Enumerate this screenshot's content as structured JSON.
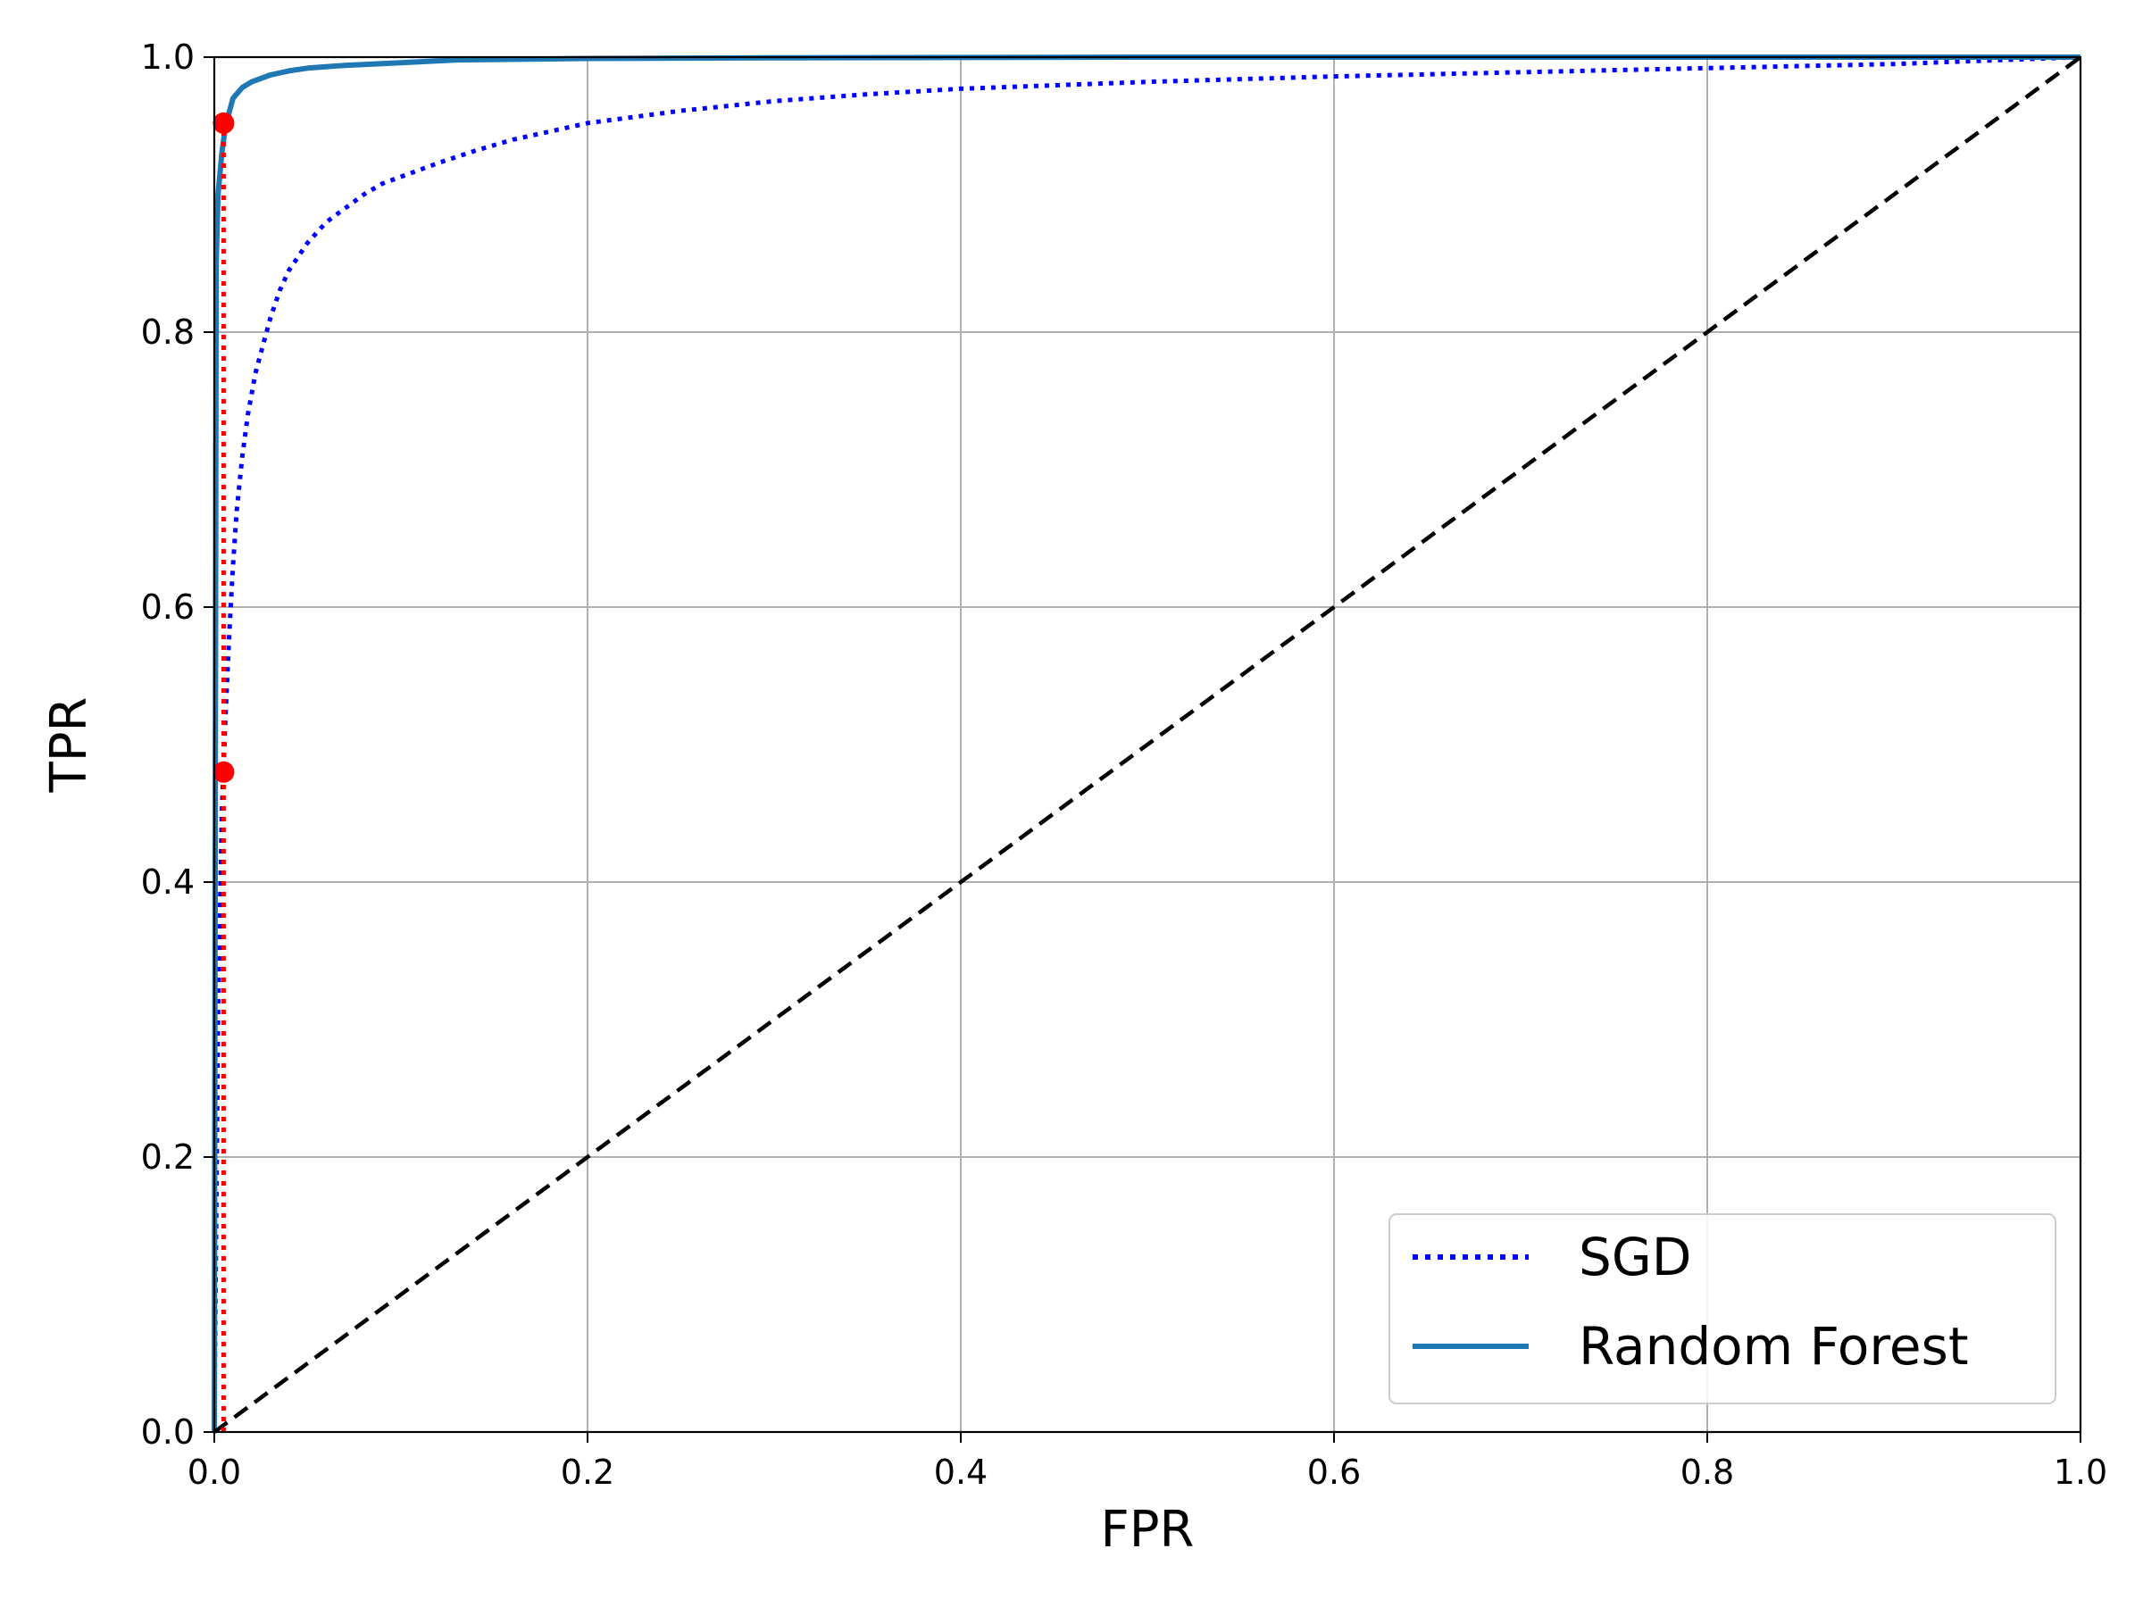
{
  "chart_data": {
    "type": "line",
    "title": "",
    "xlabel": "FPR",
    "ylabel": "TPR",
    "xlim": [
      0.0,
      1.0
    ],
    "ylim": [
      0.0,
      1.0
    ],
    "grid": true,
    "x_ticks": [
      "0.0",
      "0.2",
      "0.4",
      "0.6",
      "0.8",
      "1.0"
    ],
    "y_ticks": [
      "0.0",
      "0.2",
      "0.4",
      "0.6",
      "0.8",
      "1.0"
    ],
    "legend": {
      "placement": "bottom-right",
      "entries": [
        {
          "name": "SGD",
          "style": "dotted",
          "color": "#0000ff"
        },
        {
          "name": "Random Forest",
          "style": "solid",
          "color": "#1f77b4"
        }
      ]
    },
    "series": [
      {
        "name": "SGD",
        "style": "dotted",
        "color": "#0000ff",
        "x": [
          0.0,
          0.002,
          0.004,
          0.006,
          0.008,
          0.01,
          0.012,
          0.015,
          0.018,
          0.022,
          0.026,
          0.03,
          0.035,
          0.04,
          0.05,
          0.06,
          0.07,
          0.08,
          0.09,
          0.1,
          0.12,
          0.14,
          0.16,
          0.18,
          0.2,
          0.25,
          0.3,
          0.35,
          0.4,
          0.5,
          0.6,
          0.7,
          0.8,
          0.9,
          1.0
        ],
        "y": [
          0.0,
          0.3,
          0.45,
          0.52,
          0.58,
          0.63,
          0.67,
          0.71,
          0.74,
          0.77,
          0.79,
          0.81,
          0.83,
          0.845,
          0.865,
          0.88,
          0.89,
          0.9,
          0.908,
          0.913,
          0.923,
          0.932,
          0.94,
          0.946,
          0.952,
          0.961,
          0.968,
          0.973,
          0.977,
          0.982,
          0.986,
          0.989,
          0.992,
          0.995,
          1.0
        ]
      },
      {
        "name": "Random Forest",
        "style": "solid",
        "color": "#1f77b4",
        "x": [
          0.0,
          0.001,
          0.002,
          0.004,
          0.006,
          0.008,
          0.01,
          0.015,
          0.02,
          0.03,
          0.04,
          0.05,
          0.07,
          0.1,
          0.13,
          0.2,
          0.3,
          0.5,
          1.0
        ],
        "y": [
          0.0,
          0.85,
          0.9,
          0.93,
          0.95,
          0.96,
          0.97,
          0.978,
          0.982,
          0.987,
          0.99,
          0.992,
          0.994,
          0.996,
          0.998,
          0.999,
          0.9995,
          1.0,
          1.0
        ]
      },
      {
        "name": "",
        "style": "dashed",
        "color": "#000000",
        "x": [
          0.0,
          1.0
        ],
        "y": [
          0.0,
          1.0
        ]
      }
    ],
    "annotations": [
      {
        "type": "point",
        "x": 0.005,
        "y": 0.952,
        "color": "#ff0000"
      },
      {
        "type": "point",
        "x": 0.005,
        "y": 0.48,
        "color": "#ff0000"
      },
      {
        "type": "vline-dotted",
        "x": 0.005,
        "y_from": 0.0,
        "y_to": 0.952,
        "color": "#ff0000"
      }
    ]
  }
}
